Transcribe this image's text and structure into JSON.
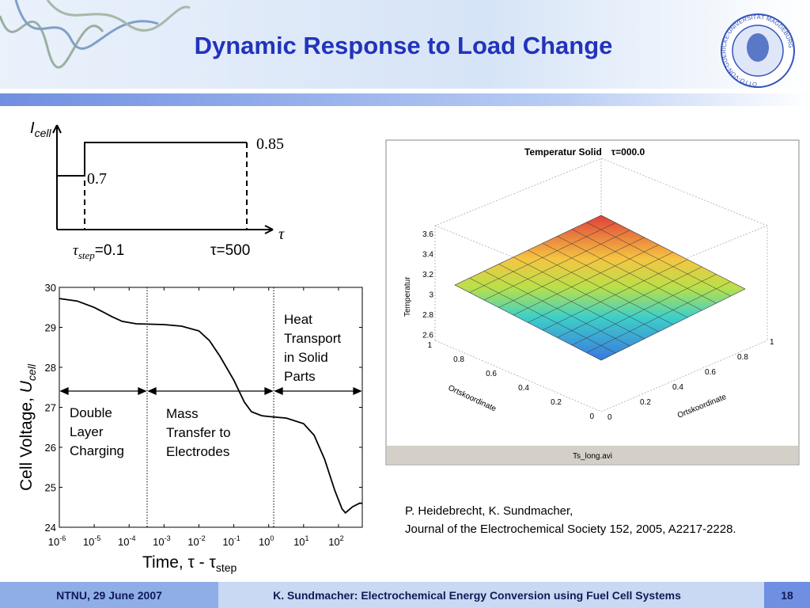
{
  "header": {
    "title": "Dynamic Response to Load Change",
    "logo_text": "OTTO-VON-GUERICKE-UNIVERSITÄT MAGDEBURG"
  },
  "current_chart": {
    "y_label": "I",
    "y_label_sub": "cell",
    "x_label": "τ",
    "low_value": 0.7,
    "high_value": 0.85,
    "step_symbol": "τ",
    "step_sub": "step",
    "step_text": "=0.1",
    "end_text": "τ=500"
  },
  "voltage_chart": {
    "type": "line",
    "y_label": "Cell Voltage, ",
    "y_label_symbol": "U",
    "y_label_sub": "cell",
    "x_label": "Time, τ - τ",
    "x_label_sub": "step",
    "x_log": true,
    "xlim": [
      1e-06,
      480
    ],
    "ylim": [
      24,
      30
    ],
    "yticks": [
      24,
      25,
      26,
      27,
      28,
      29,
      30
    ],
    "xticks": [
      {
        "value": 1e-06,
        "label": "10",
        "sup": "-6"
      },
      {
        "value": 1e-05,
        "label": "10",
        "sup": "-5"
      },
      {
        "value": 0.0001,
        "label": "10",
        "sup": "-4"
      },
      {
        "value": 0.001,
        "label": "10",
        "sup": "-3"
      },
      {
        "value": 0.01,
        "label": "10",
        "sup": "-2"
      },
      {
        "value": 0.1,
        "label": "10",
        "sup": "-1"
      },
      {
        "value": 1,
        "label": "10",
        "sup": "0"
      },
      {
        "value": 10,
        "label": "10",
        "sup": "1"
      },
      {
        "value": 100,
        "label": "10",
        "sup": "2"
      }
    ],
    "x": [
      1e-06,
      3.2e-06,
      1e-05,
      3.2e-05,
      6.3e-05,
      0.00016,
      0.001,
      0.0032,
      0.01,
      0.02,
      0.04,
      0.1,
      0.2,
      0.32,
      0.63,
      1,
      3.2,
      10,
      20,
      40,
      79,
      126,
      158,
      251,
      398,
      480
    ],
    "values": [
      29.72,
      29.66,
      29.5,
      29.27,
      29.15,
      29.09,
      29.07,
      29.03,
      28.91,
      28.67,
      28.28,
      27.68,
      27.13,
      26.89,
      26.79,
      26.77,
      26.73,
      26.59,
      26.3,
      25.7,
      24.91,
      24.46,
      24.36,
      24.51,
      24.6,
      24.6
    ],
    "color": "#000000",
    "annotations": [
      [
        "Double",
        "Layer",
        "Charging"
      ],
      [
        "Mass",
        "Transfer to",
        "Electrodes"
      ],
      [
        "Heat",
        "Transport",
        "in Solid",
        "Parts"
      ]
    ]
  },
  "sim_panel": {
    "title": "Temperatur Solid",
    "tau": "τ=000.0",
    "z_label": "Temperatur",
    "z_ticks": [
      "3.6",
      "3.4",
      "3.2",
      "3",
      "2.8",
      "2.6"
    ],
    "x_label": "Ortskoordinate",
    "y_label": "Ortskoordinate",
    "x_ticks": [
      "1",
      "0.8",
      "0.6",
      "0.4",
      "0.2",
      "0"
    ],
    "y_ticks": [
      "0",
      "0.2",
      "0.4",
      "0.6",
      "0.8",
      "1"
    ],
    "filename": "Ts_long.avi"
  },
  "citation": [
    "P. Heidebrecht, K. Sundmacher,",
    "Journal of the Electrochemical Society 152, 2005, A2217-2228."
  ],
  "footer": {
    "left": "NTNU, 29 June 2007",
    "center": "K. Sundmacher: Electrochemical Energy Conversion using Fuel Cell Systems",
    "page": "18"
  }
}
